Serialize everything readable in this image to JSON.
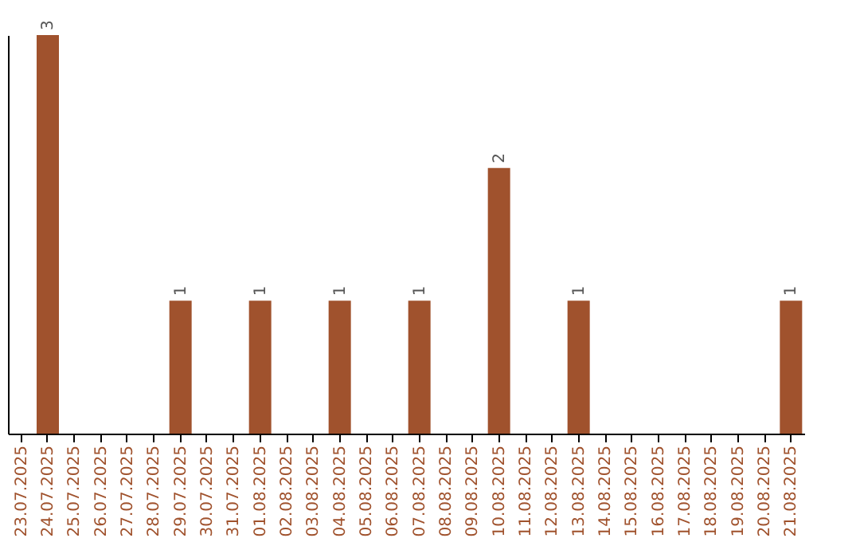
{
  "chart_data": {
    "type": "bar",
    "categories": [
      "23.07.2025",
      "24.07.2025",
      "25.07.2025",
      "26.07.2025",
      "27.07.2025",
      "28.07.2025",
      "29.07.2025",
      "30.07.2025",
      "31.07.2025",
      "01.08.2025",
      "02.08.2025",
      "03.08.2025",
      "04.08.2025",
      "05.08.2025",
      "06.08.2025",
      "07.08.2025",
      "08.08.2025",
      "09.08.2025",
      "10.08.2025",
      "11.08.2025",
      "12.08.2025",
      "13.08.2025",
      "14.08.2025",
      "15.08.2025",
      "16.08.2025",
      "17.08.2025",
      "18.08.2025",
      "19.08.2025",
      "20.08.2025",
      "21.08.2025"
    ],
    "values": [
      0,
      3,
      0,
      0,
      0,
      0,
      1,
      0,
      0,
      1,
      0,
      0,
      1,
      0,
      0,
      1,
      0,
      0,
      2,
      0,
      0,
      1,
      0,
      0,
      0,
      0,
      0,
      0,
      0,
      1
    ],
    "value_labels": [
      null,
      "3",
      null,
      null,
      null,
      null,
      "1",
      null,
      null,
      "1",
      null,
      null,
      "1",
      null,
      null,
      "1",
      null,
      null,
      "2",
      null,
      null,
      "1",
      null,
      null,
      null,
      null,
      null,
      null,
      null,
      "1"
    ],
    "color": "#a0522d",
    "relative": false,
    "grid": false
  }
}
